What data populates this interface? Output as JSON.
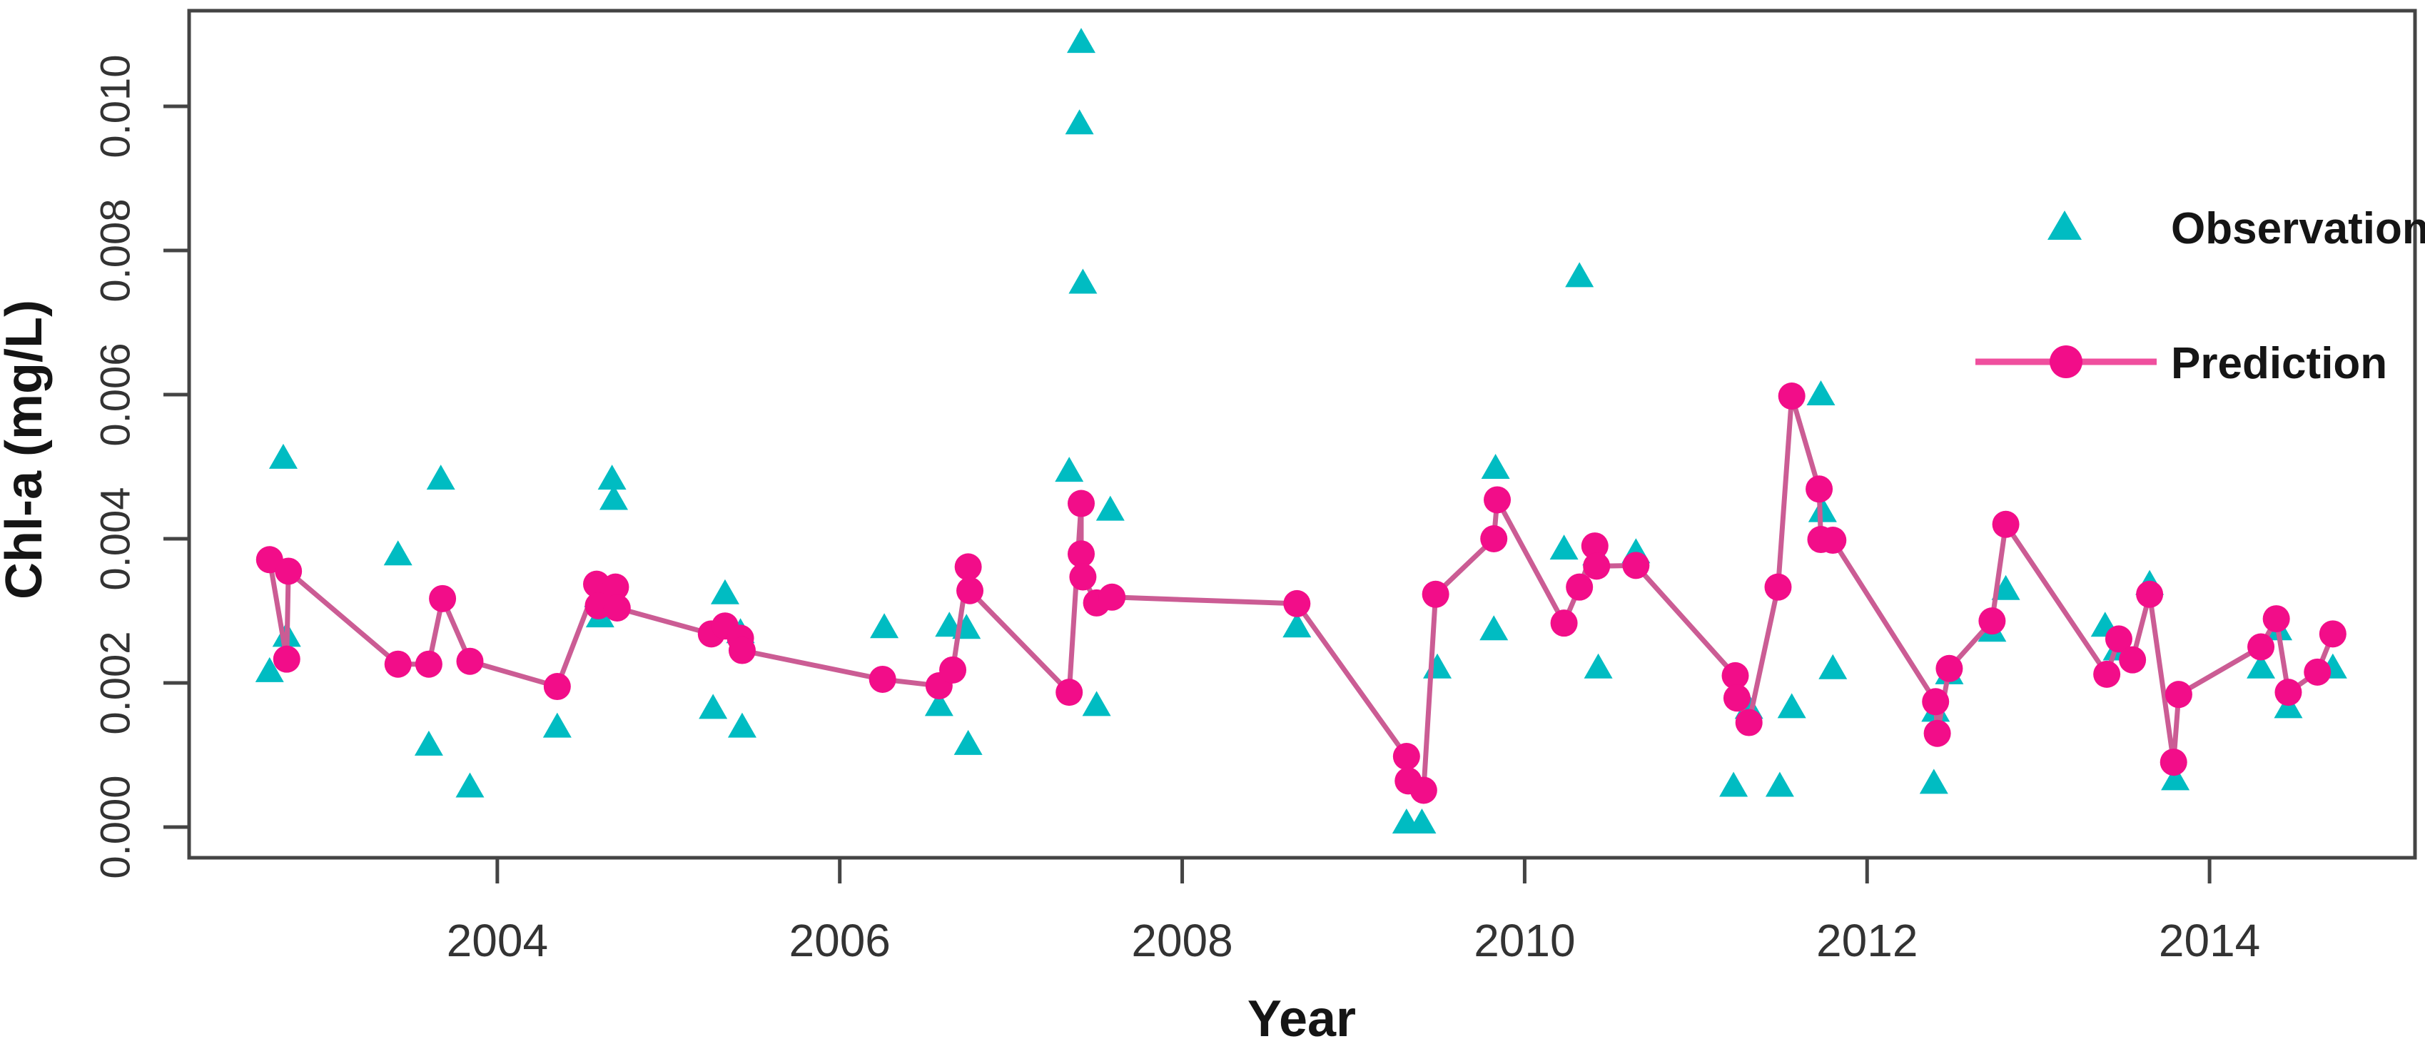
{
  "figure": {
    "background": "#ffffff",
    "border_color": "#444444"
  },
  "axes": {
    "x_label": "Year",
    "y_label": "Chl-a (mg/L)",
    "axis_color": "#444444",
    "tick_label_color": "#333333"
  },
  "legend": {
    "position": "top-right",
    "items": [
      {
        "label": "Observation",
        "marker": "triangle",
        "color": "#00bcc2"
      },
      {
        "label": "Prediction",
        "marker": "line-dot",
        "color": "#f20d89",
        "line_color": "#ef4f9e"
      }
    ]
  },
  "chart_data": {
    "type": "scatter",
    "title": "",
    "xlabel": "Year",
    "ylabel": "Chl-a (mg/L)",
    "xlim": [
      2002.2,
      2015.2
    ],
    "ylim": [
      0,
      0.0113
    ],
    "grid": false,
    "legend_position": "top-right",
    "xticks": [
      2004,
      2006,
      2008,
      2010,
      2012,
      2014
    ],
    "yticks": [
      0,
      0.002,
      0.004,
      0.006,
      0.008,
      0.01
    ],
    "ytick_labels": [
      "0.000",
      "0.002",
      "0.004",
      "0.006",
      "0.008",
      "0.010"
    ],
    "series": [
      {
        "name": "Observation",
        "type": "scatter",
        "marker": "triangle",
        "color": "#00bcc2",
        "points": [
          [
            2002.67,
            0.00215
          ],
          [
            2002.75,
            0.00511
          ],
          [
            2002.77,
            0.00264
          ],
          [
            2003.42,
            0.00377
          ],
          [
            2003.6,
            0.00113
          ],
          [
            2003.67,
            0.00482
          ],
          [
            2003.84,
            0.00055
          ],
          [
            2004.35,
            0.00138
          ],
          [
            2004.59,
            0.00319
          ],
          [
            2004.6,
            0.00291
          ],
          [
            2004.67,
            0.00482
          ],
          [
            2004.68,
            0.00454
          ],
          [
            2005.26,
            0.00164
          ],
          [
            2005.33,
            0.00323
          ],
          [
            2005.42,
            0.00269
          ],
          [
            2005.43,
            0.00138
          ],
          [
            2006.26,
            0.00276
          ],
          [
            2006.58,
            0.00168
          ],
          [
            2006.64,
            0.00278
          ],
          [
            2006.74,
            0.00275
          ],
          [
            2006.75,
            0.00114
          ],
          [
            2007.34,
            0.00493
          ],
          [
            2007.4,
            0.00975
          ],
          [
            2007.41,
            0.01088
          ],
          [
            2007.42,
            0.00754
          ],
          [
            2007.5,
            0.00168
          ],
          [
            2007.58,
            0.00439
          ],
          [
            2008.67,
            0.00277
          ],
          [
            2009.31,
            5e-05
          ],
          [
            2009.4,
            5e-05
          ],
          [
            2009.49,
            0.0022
          ],
          [
            2009.82,
            0.00273
          ],
          [
            2009.83,
            0.00497
          ],
          [
            2010.23,
            0.00385
          ],
          [
            2010.32,
            0.00763
          ],
          [
            2010.42,
            0.00377
          ],
          [
            2010.43,
            0.0022
          ],
          [
            2010.65,
            0.0038
          ],
          [
            2011.22,
            0.00056
          ],
          [
            2011.31,
            0.00164
          ],
          [
            2011.49,
            0.00056
          ],
          [
            2011.56,
            0.00165
          ],
          [
            2011.73,
            0.00599
          ],
          [
            2011.74,
            0.00437
          ],
          [
            2011.8,
            0.00219
          ],
          [
            2012.39,
            0.0006
          ],
          [
            2012.4,
            0.0016
          ],
          [
            2012.48,
            0.00212
          ],
          [
            2012.73,
            0.00271
          ],
          [
            2012.81,
            0.00329
          ],
          [
            2013.39,
            0.00278
          ],
          [
            2013.46,
            0.00245
          ],
          [
            2013.65,
            0.00336
          ],
          [
            2013.8,
            0.00065
          ],
          [
            2014.3,
            0.0022
          ],
          [
            2014.4,
            0.00273
          ],
          [
            2014.46,
            0.00165
          ],
          [
            2014.72,
            0.0022
          ]
        ]
      },
      {
        "name": "Prediction",
        "type": "line-scatter",
        "marker": "circle",
        "color": "#f20d89",
        "line_color": "#cb5c94",
        "points": [
          [
            2002.67,
            0.00371
          ],
          [
            2002.77,
            0.00233
          ],
          [
            2002.78,
            0.00355
          ],
          [
            2003.42,
            0.00226
          ],
          [
            2003.6,
            0.00226
          ],
          [
            2003.68,
            0.00317
          ],
          [
            2003.84,
            0.0023
          ],
          [
            2004.35,
            0.00195
          ],
          [
            2004.58,
            0.00337
          ],
          [
            2004.59,
            0.00307
          ],
          [
            2004.69,
            0.00333
          ],
          [
            2004.7,
            0.00304
          ],
          [
            2005.25,
            0.00268
          ],
          [
            2005.33,
            0.00279
          ],
          [
            2005.42,
            0.00262
          ],
          [
            2005.43,
            0.00245
          ],
          [
            2006.25,
            0.00205
          ],
          [
            2006.58,
            0.00196
          ],
          [
            2006.66,
            0.00218
          ],
          [
            2006.75,
            0.00361
          ],
          [
            2006.76,
            0.00328
          ],
          [
            2007.34,
            0.00187
          ],
          [
            2007.41,
            0.00449
          ],
          [
            2007.41,
            0.00379
          ],
          [
            2007.42,
            0.00347
          ],
          [
            2007.5,
            0.00311
          ],
          [
            2007.59,
            0.00319
          ],
          [
            2008.67,
            0.0031
          ],
          [
            2009.31,
            0.00098
          ],
          [
            2009.32,
            0.00064
          ],
          [
            2009.41,
            0.00051
          ],
          [
            2009.48,
            0.00323
          ],
          [
            2009.82,
            0.004
          ],
          [
            2009.84,
            0.00454
          ],
          [
            2010.23,
            0.00283
          ],
          [
            2010.32,
            0.00333
          ],
          [
            2010.41,
            0.0039
          ],
          [
            2010.42,
            0.00362
          ],
          [
            2010.65,
            0.00363
          ],
          [
            2011.23,
            0.0021
          ],
          [
            2011.24,
            0.00179
          ],
          [
            2011.31,
            0.00145
          ],
          [
            2011.48,
            0.00333
          ],
          [
            2011.56,
            0.00598
          ],
          [
            2011.72,
            0.00469
          ],
          [
            2011.73,
            0.00399
          ],
          [
            2011.8,
            0.00398
          ],
          [
            2012.4,
            0.00174
          ],
          [
            2012.41,
            0.0013
          ],
          [
            2012.48,
            0.0022
          ],
          [
            2012.73,
            0.00286
          ],
          [
            2012.81,
            0.0042
          ],
          [
            2013.4,
            0.00212
          ],
          [
            2013.47,
            0.00261
          ],
          [
            2013.55,
            0.00232
          ],
          [
            2013.65,
            0.00323
          ],
          [
            2013.79,
            0.0009
          ],
          [
            2013.82,
            0.00184
          ],
          [
            2014.3,
            0.0025
          ],
          [
            2014.39,
            0.00289
          ],
          [
            2014.46,
            0.00187
          ],
          [
            2014.63,
            0.00215
          ],
          [
            2014.72,
            0.00268
          ]
        ]
      }
    ]
  }
}
